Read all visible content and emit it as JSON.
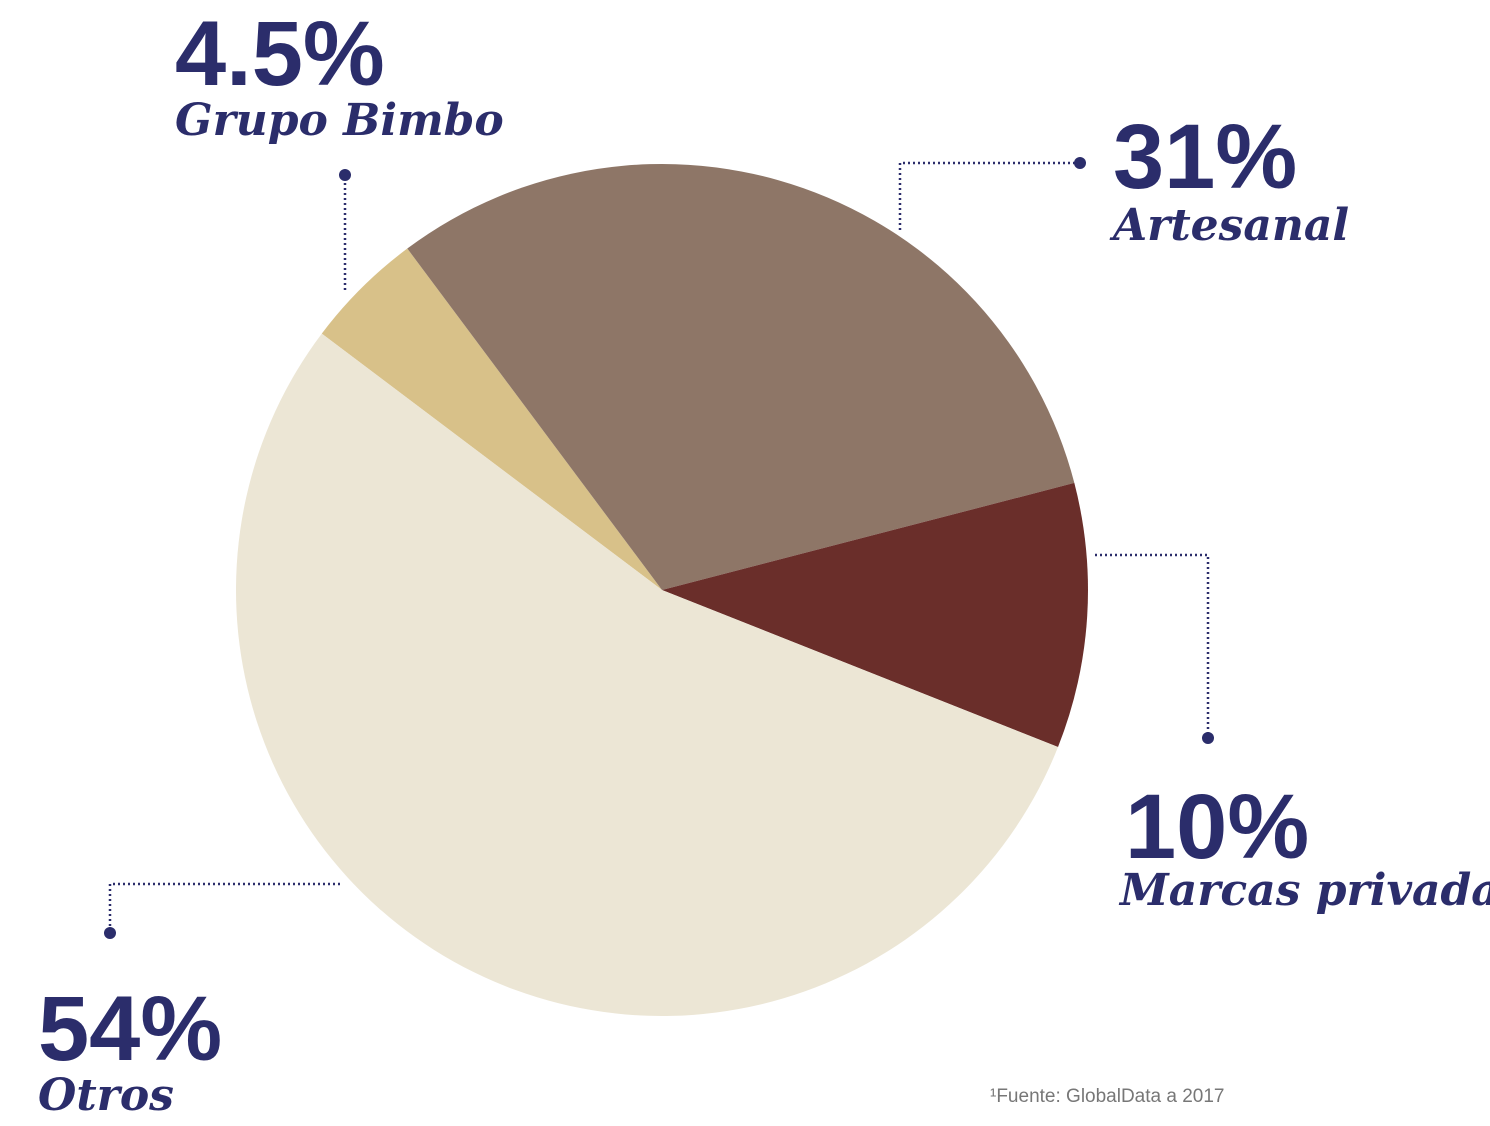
{
  "chart_data": {
    "type": "pie",
    "categories": [
      "Grupo Bimbo",
      "Artesanal",
      "Marcas privadas",
      "Otros"
    ],
    "values": [
      4.5,
      31,
      10,
      54
    ],
    "value_labels": [
      "4.5%",
      "31%",
      "10%",
      "54%"
    ],
    "colors": [
      "#d8c189",
      "#8e7667",
      "#6a2e2a",
      "#ece6d5"
    ],
    "source": "¹Fuente: GlobalData a 2017"
  }
}
